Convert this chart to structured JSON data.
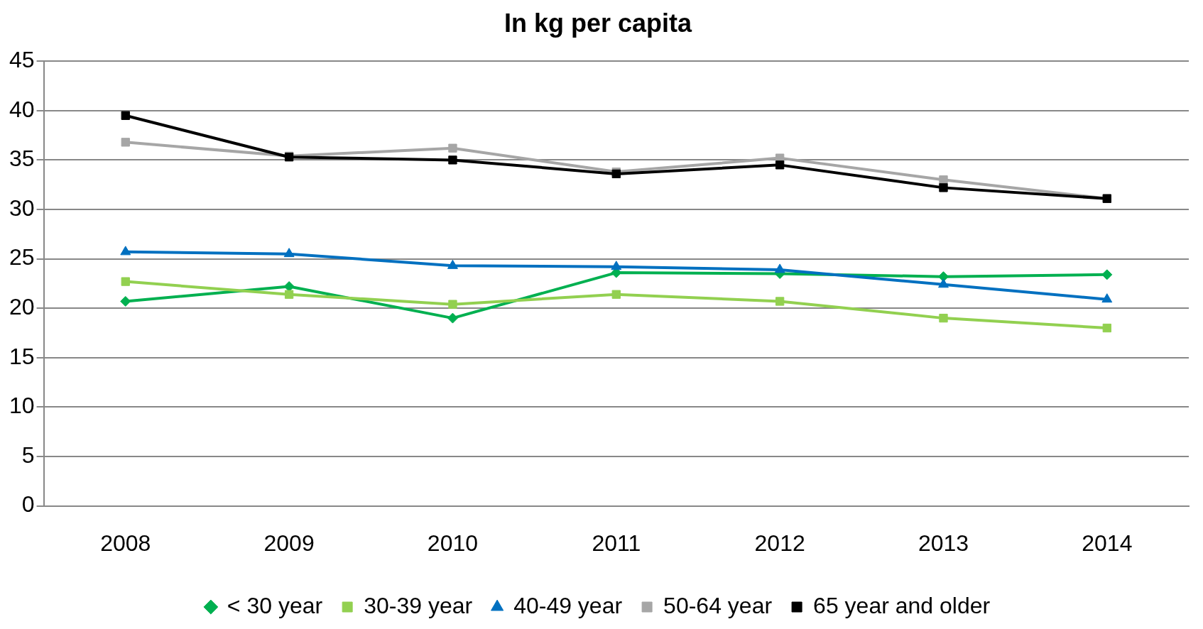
{
  "chart_data": {
    "type": "line",
    "title": "In kg per capita",
    "categories": [
      "2008",
      "2009",
      "2010",
      "2011",
      "2012",
      "2013",
      "2014"
    ],
    "ylim": [
      0,
      45
    ],
    "yticks": [
      0,
      5,
      10,
      15,
      20,
      25,
      30,
      35,
      40,
      45
    ],
    "grid": "y",
    "legend": "bottom",
    "line_style": "solid",
    "series": [
      {
        "name": "< 30 year",
        "color": "#00b050",
        "marker": "diamond",
        "values": [
          20.7,
          22.2,
          19.0,
          23.6,
          23.5,
          23.2,
          23.4
        ]
      },
      {
        "name": "30-39 year",
        "color": "#92d050",
        "marker": "square",
        "values": [
          22.7,
          21.4,
          20.4,
          21.4,
          20.7,
          19.0,
          18.0
        ]
      },
      {
        "name": "40-49 year",
        "color": "#0070c0",
        "marker": "triangle",
        "values": [
          25.7,
          25.5,
          24.3,
          24.2,
          23.9,
          22.4,
          20.9
        ]
      },
      {
        "name": "50-64 year",
        "color": "#a6a6a6",
        "marker": "square",
        "values": [
          36.8,
          35.4,
          36.2,
          33.8,
          35.2,
          33.0,
          31.1
        ]
      },
      {
        "name": "65 year and older",
        "color": "#000000",
        "marker": "square",
        "values": [
          39.5,
          35.3,
          35.0,
          33.6,
          34.5,
          32.2,
          31.1
        ]
      }
    ]
  }
}
